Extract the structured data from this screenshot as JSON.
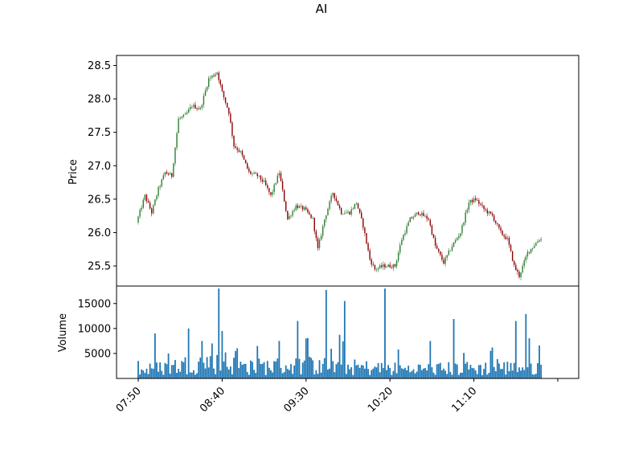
{
  "chart_data": [
    {
      "type": "candlestick",
      "title": "AI",
      "xlabel": "",
      "ylabel": "Price",
      "x_tick_labels": [
        "07:50",
        "08:40",
        "09:30",
        "10:20",
        "11:10",
        ""
      ],
      "y_ticks": [
        25.5,
        26.0,
        26.5,
        27.0,
        27.5,
        28.0,
        28.5
      ],
      "y_tick_labels": [
        "25.5",
        "26.0",
        "26.5",
        "27.0",
        "27.5",
        "28.0",
        "28.5"
      ],
      "ylim": [
        25.2,
        28.65
      ],
      "time_range": [
        "07:50",
        "12:00"
      ],
      "bar_interval_minutes": 1,
      "colors": {
        "up": "#2e7d32",
        "down": "#8b0000"
      },
      "price_path": [
        [
          "07:50",
          26.15
        ],
        [
          "07:55",
          26.55
        ],
        [
          "07:59",
          26.3
        ],
        [
          "08:03",
          26.65
        ],
        [
          "08:07",
          26.9
        ],
        [
          "08:11",
          26.85
        ],
        [
          "08:15",
          27.7
        ],
        [
          "08:19",
          27.75
        ],
        [
          "08:23",
          27.9
        ],
        [
          "08:28",
          27.85
        ],
        [
          "08:33",
          28.3
        ],
        [
          "08:38",
          28.4
        ],
        [
          "08:41",
          28.1
        ],
        [
          "08:45",
          27.8
        ],
        [
          "08:48",
          27.3
        ],
        [
          "08:52",
          27.2
        ],
        [
          "08:57",
          26.9
        ],
        [
          "09:02",
          26.85
        ],
        [
          "09:06",
          26.75
        ],
        [
          "09:10",
          26.55
        ],
        [
          "09:15",
          26.9
        ],
        [
          "09:20",
          26.2
        ],
        [
          "09:25",
          26.4
        ],
        [
          "09:30",
          26.35
        ],
        [
          "09:35",
          26.2
        ],
        [
          "09:38",
          25.75
        ],
        [
          "09:42",
          26.2
        ],
        [
          "09:47",
          26.6
        ],
        [
          "09:52",
          26.3
        ],
        [
          "09:57",
          26.3
        ],
        [
          "10:01",
          26.45
        ],
        [
          "10:05",
          26.1
        ],
        [
          "10:09",
          25.6
        ],
        [
          "10:12",
          25.45
        ],
        [
          "10:17",
          25.5
        ],
        [
          "10:24",
          25.5
        ],
        [
          "10:28",
          25.9
        ],
        [
          "10:33",
          26.2
        ],
        [
          "10:38",
          26.3
        ],
        [
          "10:44",
          26.2
        ],
        [
          "10:48",
          25.8
        ],
        [
          "10:53",
          25.55
        ],
        [
          "10:58",
          25.8
        ],
        [
          "11:03",
          26.0
        ],
        [
          "11:08",
          26.45
        ],
        [
          "11:12",
          26.5
        ],
        [
          "11:17",
          26.35
        ],
        [
          "11:22",
          26.25
        ],
        [
          "11:27",
          26.0
        ],
        [
          "11:31",
          25.9
        ],
        [
          "11:35",
          25.5
        ],
        [
          "11:38",
          25.35
        ],
        [
          "11:43",
          25.7
        ],
        [
          "11:50",
          25.9
        ]
      ],
      "price_noise": 0.06
    },
    {
      "type": "bar",
      "title": "",
      "xlabel": "",
      "ylabel": "Volume",
      "y_ticks": [
        5000,
        10000,
        15000
      ],
      "y_tick_labels": [
        "5000",
        "10000",
        "15000"
      ],
      "ylim": [
        0,
        18500
      ],
      "bar_color": "#1f77b4",
      "volume_baseline": [
        [
          "07:50",
          1500
        ],
        [
          "08:30",
          3200
        ],
        [
          "08:55",
          2300
        ],
        [
          "09:30",
          2600
        ],
        [
          "10:30",
          1800
        ],
        [
          "11:50",
          2200
        ]
      ],
      "volume_spikes": [
        [
          "07:50",
          3500
        ],
        [
          "08:00",
          9000
        ],
        [
          "08:08",
          5000
        ],
        [
          "08:20",
          10000
        ],
        [
          "08:28",
          7500
        ],
        [
          "08:34",
          7000
        ],
        [
          "08:38",
          18000
        ],
        [
          "08:40",
          9500
        ],
        [
          "08:48",
          5500
        ],
        [
          "09:01",
          6500
        ],
        [
          "09:14",
          7500
        ],
        [
          "09:25",
          11500
        ],
        [
          "09:30",
          8000
        ],
        [
          "09:42",
          17700
        ],
        [
          "09:53",
          15500
        ],
        [
          "10:17",
          18000
        ],
        [
          "10:25",
          5800
        ],
        [
          "10:44",
          7500
        ],
        [
          "10:58",
          11900
        ],
        [
          "11:21",
          6200
        ],
        [
          "11:35",
          11500
        ],
        [
          "11:41",
          12900
        ],
        [
          "11:49",
          6600
        ]
      ]
    }
  ]
}
